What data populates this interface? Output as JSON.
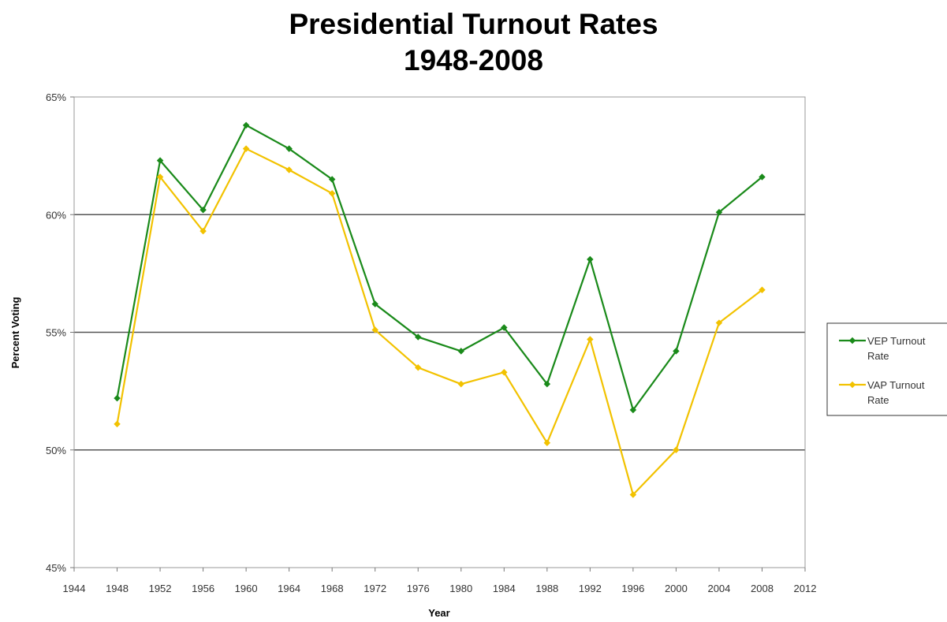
{
  "chart_data": {
    "type": "line",
    "title": "Presidential Turnout Rates",
    "subtitle": "1948-2008",
    "xlabel": "Year",
    "ylabel": "Percent Voting",
    "xlim": [
      1944,
      2012
    ],
    "ylim": [
      45,
      65
    ],
    "x_ticks": [
      "1944",
      "1948",
      "1952",
      "1956",
      "1960",
      "1964",
      "1968",
      "1972",
      "1976",
      "1980",
      "1984",
      "1988",
      "1992",
      "1996",
      "2000",
      "2004",
      "2008",
      "2012"
    ],
    "y_ticks": [
      "45%",
      "50%",
      "55%",
      "60%",
      "65%"
    ],
    "grid": "horizontal",
    "legend_position": "right",
    "x": [
      1948,
      1952,
      1956,
      1960,
      1964,
      1968,
      1972,
      1976,
      1980,
      1984,
      1988,
      1992,
      1996,
      2000,
      2004,
      2008
    ],
    "series": [
      {
        "name": "VEP Turnout Rate",
        "legend_lines": [
          "VEP Turnout",
          "Rate"
        ],
        "color": "#1a8a1a",
        "values": [
          52.2,
          62.3,
          60.2,
          63.8,
          62.8,
          61.5,
          56.2,
          54.8,
          54.2,
          55.2,
          52.8,
          58.1,
          51.7,
          54.2,
          60.1,
          61.6
        ]
      },
      {
        "name": "VAP Turnout Rate",
        "legend_lines": [
          "VAP Turnout",
          "Rate"
        ],
        "color": "#f2c200",
        "values": [
          51.1,
          61.6,
          59.3,
          62.8,
          61.9,
          60.9,
          55.1,
          53.5,
          52.8,
          53.3,
          50.3,
          54.7,
          48.1,
          50.0,
          55.4,
          56.8
        ]
      }
    ]
  }
}
